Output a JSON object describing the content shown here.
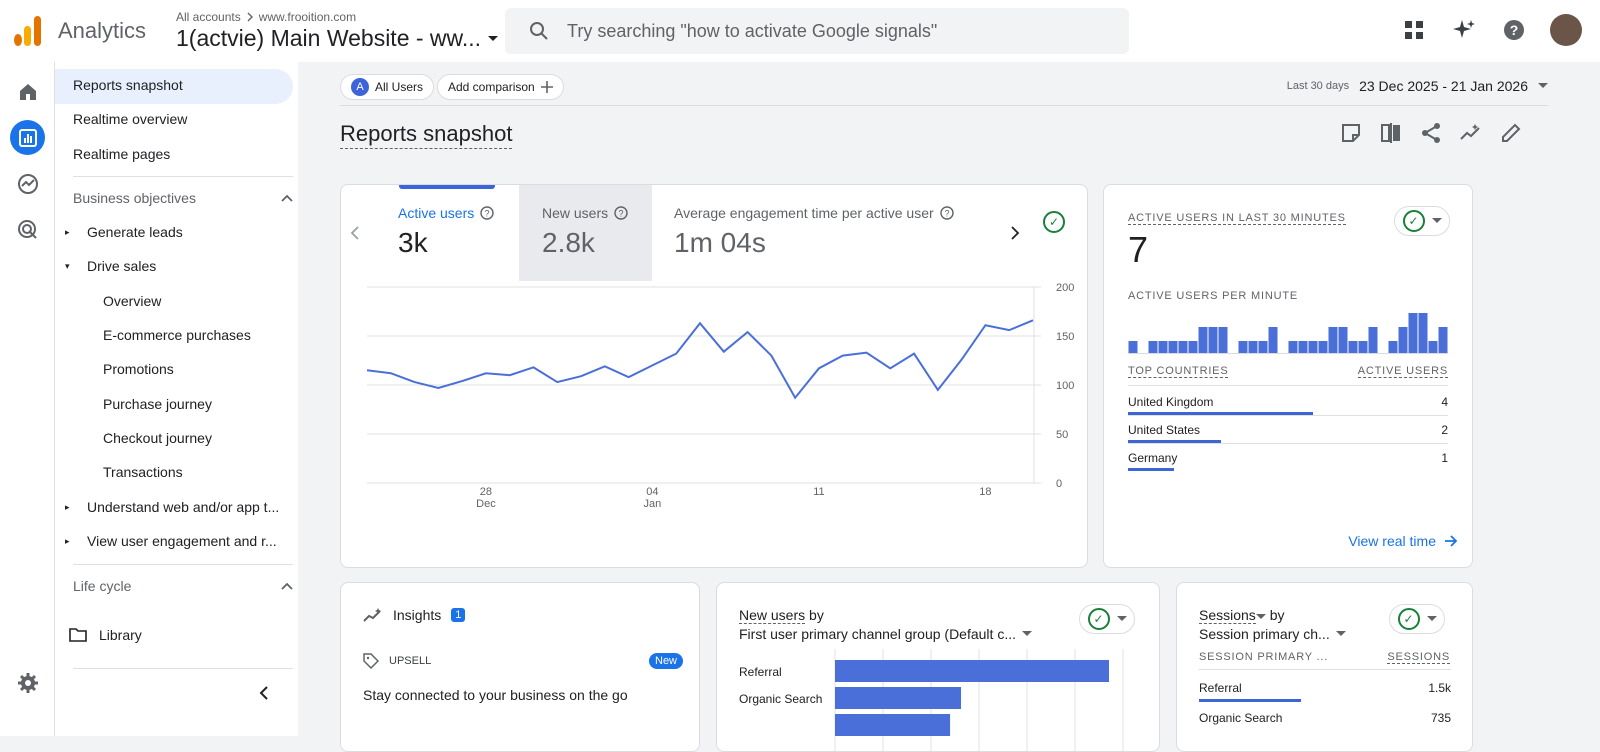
{
  "header": {
    "app_name": "Analytics",
    "crumb_accounts": "All accounts",
    "crumb_sep": ">",
    "crumb_domain": "www.frooition.com",
    "property": "1(actvie) Main Website - ww...",
    "search_placeholder": "Try searching \"how to activate Google signals\""
  },
  "sidebar": {
    "items": [
      {
        "label": "Reports snapshot"
      },
      {
        "label": "Realtime overview"
      },
      {
        "label": "Realtime pages"
      }
    ],
    "section_business": "Business objectives",
    "business_items": [
      {
        "label": "Generate leads",
        "expanded": false
      },
      {
        "label": "Drive sales",
        "expanded": true
      }
    ],
    "drive_sales_children": [
      "Overview",
      "E-commerce purchases",
      "Promotions",
      "Purchase journey",
      "Checkout journey",
      "Transactions"
    ],
    "more_items": [
      "Understand web and/or app t...",
      "View user engagement and r..."
    ],
    "section_lifecycle": "Life cycle",
    "library": "Library"
  },
  "comparison": {
    "chip_a_letter": "A",
    "chip_label": "All Users",
    "add_label": "Add comparison",
    "date_prefix": "Last 30 days",
    "date_range": "23 Dec 2025 - 21 Jan 2026"
  },
  "page_title": "Reports snapshot",
  "metrics": [
    {
      "label": "Active users",
      "value": "3k"
    },
    {
      "label": "New users",
      "value": "2.8k"
    },
    {
      "label": "Average engagement time per active user",
      "value": "1m 04s"
    }
  ],
  "chart_data": {
    "type": "line",
    "series": [
      {
        "values": [
          115,
          112,
          103,
          97,
          104,
          112,
          110,
          118,
          103,
          109,
          119,
          108,
          120,
          132,
          163,
          134,
          154,
          130,
          87,
          117,
          130,
          133,
          117,
          132,
          95,
          126,
          161,
          156,
          166
        ]
      }
    ],
    "ylim": [
      0,
      200
    ],
    "y_ticks": [
      "0",
      "50",
      "100",
      "150",
      "200"
    ],
    "x_ticks": [
      {
        "day": "28",
        "month": "Dec"
      },
      {
        "day": "04",
        "month": "Jan"
      },
      {
        "day": "11",
        "month": ""
      },
      {
        "day": "18",
        "month": ""
      }
    ],
    "color": "#4a6fd8",
    "grid": true
  },
  "realtime": {
    "title": "ACTIVE USERS IN LAST 30 MINUTES",
    "value": "7",
    "per_minute_label": "ACTIVE USERS PER MINUTE",
    "per_minute": [
      1,
      0,
      1,
      1,
      1,
      1,
      1,
      2,
      2,
      2,
      0,
      1,
      1,
      1,
      2,
      0,
      1,
      1,
      1,
      1,
      2,
      2,
      1,
      1,
      2,
      0,
      1,
      2,
      3,
      3,
      1,
      2
    ],
    "col_country": "TOP COUNTRIES",
    "col_users": "ACTIVE USERS",
    "countries": [
      {
        "name": "United Kingdom",
        "value": "4",
        "share": 1.0
      },
      {
        "name": "United States",
        "value": "2",
        "share": 0.5
      },
      {
        "name": "Germany",
        "value": "1",
        "share": 0.25
      }
    ],
    "view_link": "View real time"
  },
  "insights": {
    "title": "Insights",
    "count": "1",
    "tag": "UPSELL",
    "new_badge": "New",
    "text": "Stay connected to your business on the go"
  },
  "new_users_card": {
    "title_metric": "New users",
    "title_by": "by",
    "dimension": "First user primary channel group (Default c...",
    "bars": [
      {
        "label": "Referral",
        "value": 1.0
      },
      {
        "label": "Organic Search",
        "value": 0.46
      },
      {
        "label": "",
        "value": 0.42
      }
    ]
  },
  "sessions_card": {
    "title_metric": "Sessions",
    "title_by": "by",
    "dimension": "Session primary ch...",
    "col_dim": "SESSION PRIMARY ...",
    "col_val": "SESSIONS",
    "rows": [
      {
        "name": "Referral",
        "value": "1.5k",
        "share": 1.0
      },
      {
        "name": "Organic Search",
        "value": "735",
        "share": 0.49
      }
    ]
  }
}
